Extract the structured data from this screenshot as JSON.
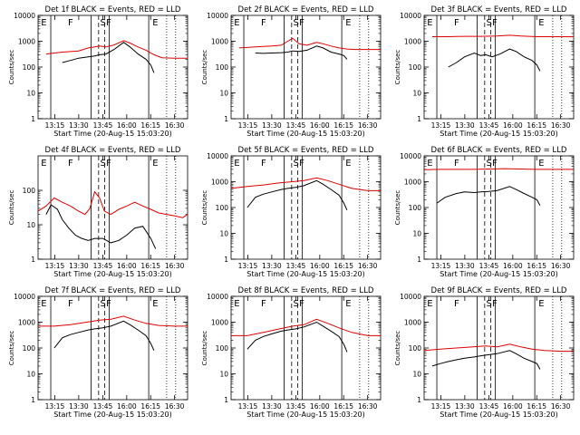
{
  "chart_data": [
    {
      "type": "line",
      "title": "Det 1f BLACK = Events, RED = LLD",
      "ylabel": "Counts/sec",
      "xlabel": "Start Time (20-Aug-15 15:03:20)",
      "xlim": [
        "13:05",
        "16:42"
      ],
      "ylim": [
        1,
        10000
      ],
      "yscale": "log",
      "yticks": [
        "1",
        "10",
        "100",
        "1000",
        "10000"
      ],
      "xticks": [
        "13:15",
        "13:30",
        "13:45",
        "16:00",
        "16:15",
        "16:30"
      ],
      "region_labels": [
        "E",
        "F",
        "S",
        "F",
        "E"
      ],
      "series": [
        {
          "color": "#dd0000",
          "x": [
            "13:10",
            "13:20",
            "13:30",
            "13:36",
            "13:40",
            "13:43",
            "13:47",
            "13:52",
            "13:58",
            "14:02",
            "14:07",
            "14:12",
            "14:17",
            "14:22",
            "14:30",
            "14:38"
          ],
          "y": [
            320,
            380,
            420,
            550,
            600,
            650,
            600,
            720,
            1050,
            850,
            600,
            450,
            300,
            230,
            220,
            220
          ]
        },
        {
          "color": "#000000",
          "x": [
            "13:20",
            "13:25",
            "13:30",
            "13:36",
            "13:40",
            "13:43",
            "13:47",
            "13:52",
            "13:58",
            "14:02",
            "14:07",
            "14:12",
            "14:15",
            "14:17"
          ],
          "y": [
            150,
            180,
            220,
            250,
            270,
            300,
            320,
            480,
            900,
            600,
            320,
            200,
            120,
            60
          ]
        }
      ]
    },
    {
      "type": "line",
      "title": "Det 2f BLACK = Events, RED = LLD",
      "ylabel": "Counts/sec",
      "xlabel": "Start Time (20-Aug-15 15:03:20)",
      "xlim": [
        "13:05",
        "16:42"
      ],
      "ylim": [
        1,
        10000
      ],
      "yscale": "log",
      "yticks": [
        "1",
        "10",
        "100",
        "1000",
        "10000"
      ],
      "xticks": [
        "13:15",
        "13:30",
        "13:45",
        "16:00",
        "16:15",
        "16:30"
      ],
      "region_labels": [
        "E",
        "F",
        "S",
        "F",
        "E"
      ],
      "series": [
        {
          "color": "#dd0000",
          "x": [
            "13:10",
            "13:20",
            "13:30",
            "13:36",
            "13:40",
            "13:43",
            "13:47",
            "13:52",
            "13:58",
            "14:02",
            "14:07",
            "14:12",
            "14:17",
            "14:22",
            "14:30",
            "14:38"
          ],
          "y": [
            550,
            600,
            650,
            700,
            1000,
            1300,
            800,
            700,
            900,
            800,
            650,
            550,
            500,
            480,
            480,
            480
          ]
        },
        {
          "color": "#000000",
          "x": [
            "13:20",
            "13:25",
            "13:30",
            "13:36",
            "13:40",
            "13:43",
            "13:47",
            "13:52",
            "13:58",
            "14:02",
            "14:07",
            "14:12",
            "14:15",
            "14:17"
          ],
          "y": [
            350,
            340,
            350,
            360,
            380,
            420,
            400,
            450,
            650,
            550,
            380,
            320,
            280,
            200
          ]
        }
      ]
    },
    {
      "type": "line",
      "title": "Det 3f BLACK = Events, RED = LLD",
      "ylabel": "Counts/sec",
      "xlabel": "Start Time (20-Aug-15 15:03:20)",
      "xlim": [
        "13:05",
        "16:42"
      ],
      "ylim": [
        1,
        10000
      ],
      "yscale": "log",
      "yticks": [
        "1",
        "10",
        "100",
        "1000",
        "10000"
      ],
      "xticks": [
        "13:15",
        "13:30",
        "13:45",
        "16:00",
        "16:15",
        "16:30"
      ],
      "region_labels": [
        "E",
        "F",
        "S",
        "F",
        "E"
      ],
      "series": [
        {
          "color": "#dd0000",
          "x": [
            "13:10",
            "13:20",
            "13:30",
            "13:40",
            "13:50",
            "13:58",
            "14:05",
            "14:15",
            "14:25",
            "14:38"
          ],
          "y": [
            1500,
            1500,
            1550,
            1550,
            1600,
            1700,
            1600,
            1500,
            1500,
            1500
          ]
        },
        {
          "color": "#000000",
          "x": [
            "13:20",
            "13:25",
            "13:30",
            "13:36",
            "13:40",
            "13:43",
            "13:47",
            "13:52",
            "13:58",
            "14:02",
            "14:07",
            "14:12",
            "14:15",
            "14:17"
          ],
          "y": [
            100,
            150,
            250,
            350,
            280,
            300,
            250,
            320,
            500,
            400,
            250,
            180,
            120,
            70
          ]
        }
      ]
    },
    {
      "type": "line",
      "title": "Det 4f BLACK = Events, RED = LLD",
      "ylabel": "Counts/sec",
      "xlabel": "Start Time (20-Aug-15 15:03:20)",
      "xlim": [
        "13:05",
        "16:42"
      ],
      "ylim": [
        1,
        1000
      ],
      "yscale": "log",
      "yticks": [
        "1",
        "10",
        "100"
      ],
      "xticks": [
        "13:15",
        "13:30",
        "13:45",
        "16:00",
        "16:15",
        "16:30"
      ],
      "region_labels": [
        "E",
        "F",
        "S",
        "F",
        "E"
      ],
      "series": [
        {
          "color": "#dd0000",
          "x": [
            "13:05",
            "13:10",
            "13:15",
            "13:20",
            "13:25",
            "13:30",
            "13:34",
            "13:37",
            "13:40",
            "13:43",
            "13:46",
            "13:50",
            "13:55",
            "14:00",
            "14:05",
            "14:10",
            "14:15",
            "14:20",
            "14:25",
            "14:30",
            "14:35",
            "14:38"
          ],
          "y": [
            25,
            35,
            60,
            45,
            35,
            25,
            20,
            30,
            90,
            60,
            25,
            20,
            28,
            35,
            45,
            35,
            28,
            22,
            20,
            18,
            16,
            20
          ]
        },
        {
          "color": "#000000",
          "x": [
            "13:10",
            "13:13",
            "13:17",
            "13:20",
            "13:24",
            "13:28",
            "13:32",
            "13:36",
            "13:40",
            "13:45",
            "13:50",
            "13:55",
            "14:00",
            "14:05",
            "14:10",
            "14:15",
            "14:18"
          ],
          "y": [
            20,
            38,
            28,
            14,
            8,
            5,
            4,
            3.5,
            4,
            4,
            3,
            3.5,
            5,
            8,
            9,
            4,
            2
          ]
        }
      ]
    },
    {
      "type": "line",
      "title": "Det 5f BLACK = Events, RED = LLD",
      "ylabel": "Counts/sec",
      "xlabel": "Start Time (20-Aug-15 15:03:20)",
      "xlim": [
        "13:05",
        "16:42"
      ],
      "ylim": [
        1,
        10000
      ],
      "yscale": "log",
      "yticks": [
        "1",
        "10",
        "100",
        "1000",
        "10000"
      ],
      "xticks": [
        "13:15",
        "13:30",
        "13:45",
        "16:00",
        "16:15",
        "16:30"
      ],
      "region_labels": [
        "E",
        "F",
        "S",
        "F",
        "E"
      ],
      "series": [
        {
          "color": "#dd0000",
          "x": [
            "13:05",
            "13:15",
            "13:25",
            "13:35",
            "13:43",
            "13:50",
            "13:58",
            "14:05",
            "14:12",
            "14:20",
            "14:30",
            "14:38"
          ],
          "y": [
            550,
            650,
            750,
            900,
            1000,
            1100,
            1400,
            1100,
            800,
            550,
            450,
            450
          ]
        },
        {
          "color": "#000000",
          "x": [
            "13:15",
            "13:20",
            "13:25",
            "13:30",
            "13:36",
            "13:40",
            "13:45",
            "13:50",
            "13:58",
            "14:02",
            "14:07",
            "14:12",
            "14:15",
            "14:17"
          ],
          "y": [
            100,
            250,
            330,
            400,
            500,
            550,
            600,
            700,
            1100,
            800,
            500,
            300,
            150,
            80
          ]
        }
      ]
    },
    {
      "type": "line",
      "title": "Det 6f BLACK = Events, RED = LLD",
      "ylabel": "Counts/sec",
      "xlabel": "Start Time (20-Aug-15 15:03:20)",
      "xlim": [
        "13:05",
        "16:42"
      ],
      "ylim": [
        1,
        10000
      ],
      "yscale": "log",
      "yticks": [
        "1",
        "10",
        "100",
        "1000",
        "10000"
      ],
      "xticks": [
        "13:15",
        "13:30",
        "13:45",
        "16:00",
        "16:15",
        "16:30"
      ],
      "region_labels": [
        "E",
        "F",
        "S",
        "F",
        "E"
      ],
      "series": [
        {
          "color": "#dd0000",
          "x": [
            "13:05",
            "13:15",
            "13:25",
            "13:35",
            "13:45",
            "13:55",
            "14:05",
            "14:15",
            "14:25",
            "14:38"
          ],
          "y": [
            2900,
            3000,
            3000,
            3000,
            3100,
            3200,
            3100,
            3000,
            3000,
            3000
          ]
        },
        {
          "color": "#000000",
          "x": [
            "13:13",
            "13:18",
            "13:25",
            "13:30",
            "13:36",
            "13:40",
            "13:45",
            "13:50",
            "13:58",
            "14:02",
            "14:07",
            "14:12",
            "14:15",
            "14:17"
          ],
          "y": [
            150,
            250,
            350,
            400,
            380,
            400,
            420,
            450,
            650,
            500,
            350,
            250,
            200,
            120
          ]
        }
      ]
    },
    {
      "type": "line",
      "title": "Det 7f BLACK = Events, RED = LLD",
      "ylabel": "Counts/sec",
      "xlabel": "Start Time (20-Aug-15 15:03:20)",
      "xlim": [
        "13:05",
        "16:42"
      ],
      "ylim": [
        1,
        10000
      ],
      "yscale": "log",
      "yticks": [
        "1",
        "10",
        "100",
        "1000",
        "10000"
      ],
      "xticks": [
        "13:15",
        "13:30",
        "13:45",
        "16:00",
        "16:15",
        "16:30"
      ],
      "region_labels": [
        "E",
        "F",
        "S",
        "F",
        "E"
      ],
      "series": [
        {
          "color": "#dd0000",
          "x": [
            "13:05",
            "13:15",
            "13:25",
            "13:35",
            "13:43",
            "13:50",
            "13:58",
            "14:05",
            "14:12",
            "14:20",
            "14:30",
            "14:38"
          ],
          "y": [
            700,
            700,
            800,
            1000,
            1200,
            1300,
            1700,
            1200,
            900,
            750,
            700,
            700
          ]
        },
        {
          "color": "#000000",
          "x": [
            "13:15",
            "13:20",
            "13:25",
            "13:30",
            "13:36",
            "13:40",
            "13:45",
            "13:50",
            "13:58",
            "14:02",
            "14:07",
            "14:12",
            "14:15",
            "14:17"
          ],
          "y": [
            100,
            250,
            330,
            400,
            500,
            550,
            600,
            700,
            1100,
            800,
            500,
            300,
            150,
            80
          ]
        }
      ]
    },
    {
      "type": "line",
      "title": "Det 8f BLACK = Events, RED = LLD",
      "ylabel": "Counts/sec",
      "xlabel": "Start Time (20-Aug-15 15:03:20)",
      "xlim": [
        "13:05",
        "16:42"
      ],
      "ylim": [
        1,
        10000
      ],
      "yscale": "log",
      "yticks": [
        "1",
        "10",
        "100",
        "1000",
        "10000"
      ],
      "xticks": [
        "13:15",
        "13:30",
        "13:45",
        "16:00",
        "16:15",
        "16:30"
      ],
      "region_labels": [
        "E",
        "F",
        "S",
        "F",
        "E"
      ],
      "series": [
        {
          "color": "#dd0000",
          "x": [
            "13:05",
            "13:15",
            "13:25",
            "13:35",
            "13:43",
            "13:50",
            "13:58",
            "14:05",
            "14:12",
            "14:20",
            "14:30",
            "14:38"
          ],
          "y": [
            300,
            300,
            400,
            550,
            700,
            800,
            1300,
            900,
            600,
            400,
            300,
            300
          ]
        },
        {
          "color": "#000000",
          "x": [
            "13:15",
            "13:20",
            "13:25",
            "13:30",
            "13:36",
            "13:40",
            "13:45",
            "13:50",
            "13:58",
            "14:02",
            "14:07",
            "14:12",
            "14:15",
            "14:17"
          ],
          "y": [
            90,
            200,
            280,
            350,
            450,
            500,
            550,
            650,
            1000,
            700,
            450,
            280,
            140,
            70
          ]
        }
      ]
    },
    {
      "type": "line",
      "title": "Det 9f BLACK = Events, RED = LLD",
      "ylabel": "Counts/sec",
      "xlabel": "Start Time (20-Aug-15 15:03:20)",
      "xlim": [
        "13:05",
        "16:42"
      ],
      "ylim": [
        1,
        10000
      ],
      "yscale": "log",
      "yticks": [
        "1",
        "10",
        "100",
        "1000",
        "10000"
      ],
      "xticks": [
        "13:15",
        "13:30",
        "13:45",
        "16:00",
        "16:15",
        "16:30"
      ],
      "region_labels": [
        "E",
        "F",
        "S",
        "F",
        "E"
      ],
      "series": [
        {
          "color": "#dd0000",
          "x": [
            "13:05",
            "13:15",
            "13:25",
            "13:35",
            "13:43",
            "13:50",
            "13:58",
            "14:05",
            "14:12",
            "14:20",
            "14:30",
            "14:38"
          ],
          "y": [
            80,
            90,
            100,
            110,
            120,
            110,
            140,
            110,
            90,
            80,
            75,
            75
          ]
        },
        {
          "color": "#000000",
          "x": [
            "13:10",
            "13:15",
            "13:20",
            "13:25",
            "13:30",
            "13:36",
            "13:40",
            "13:45",
            "13:50",
            "13:58",
            "14:02",
            "14:07",
            "14:12",
            "14:15",
            "14:17"
          ],
          "y": [
            20,
            25,
            30,
            35,
            40,
            45,
            50,
            55,
            60,
            80,
            60,
            40,
            30,
            25,
            15
          ]
        }
      ]
    }
  ]
}
